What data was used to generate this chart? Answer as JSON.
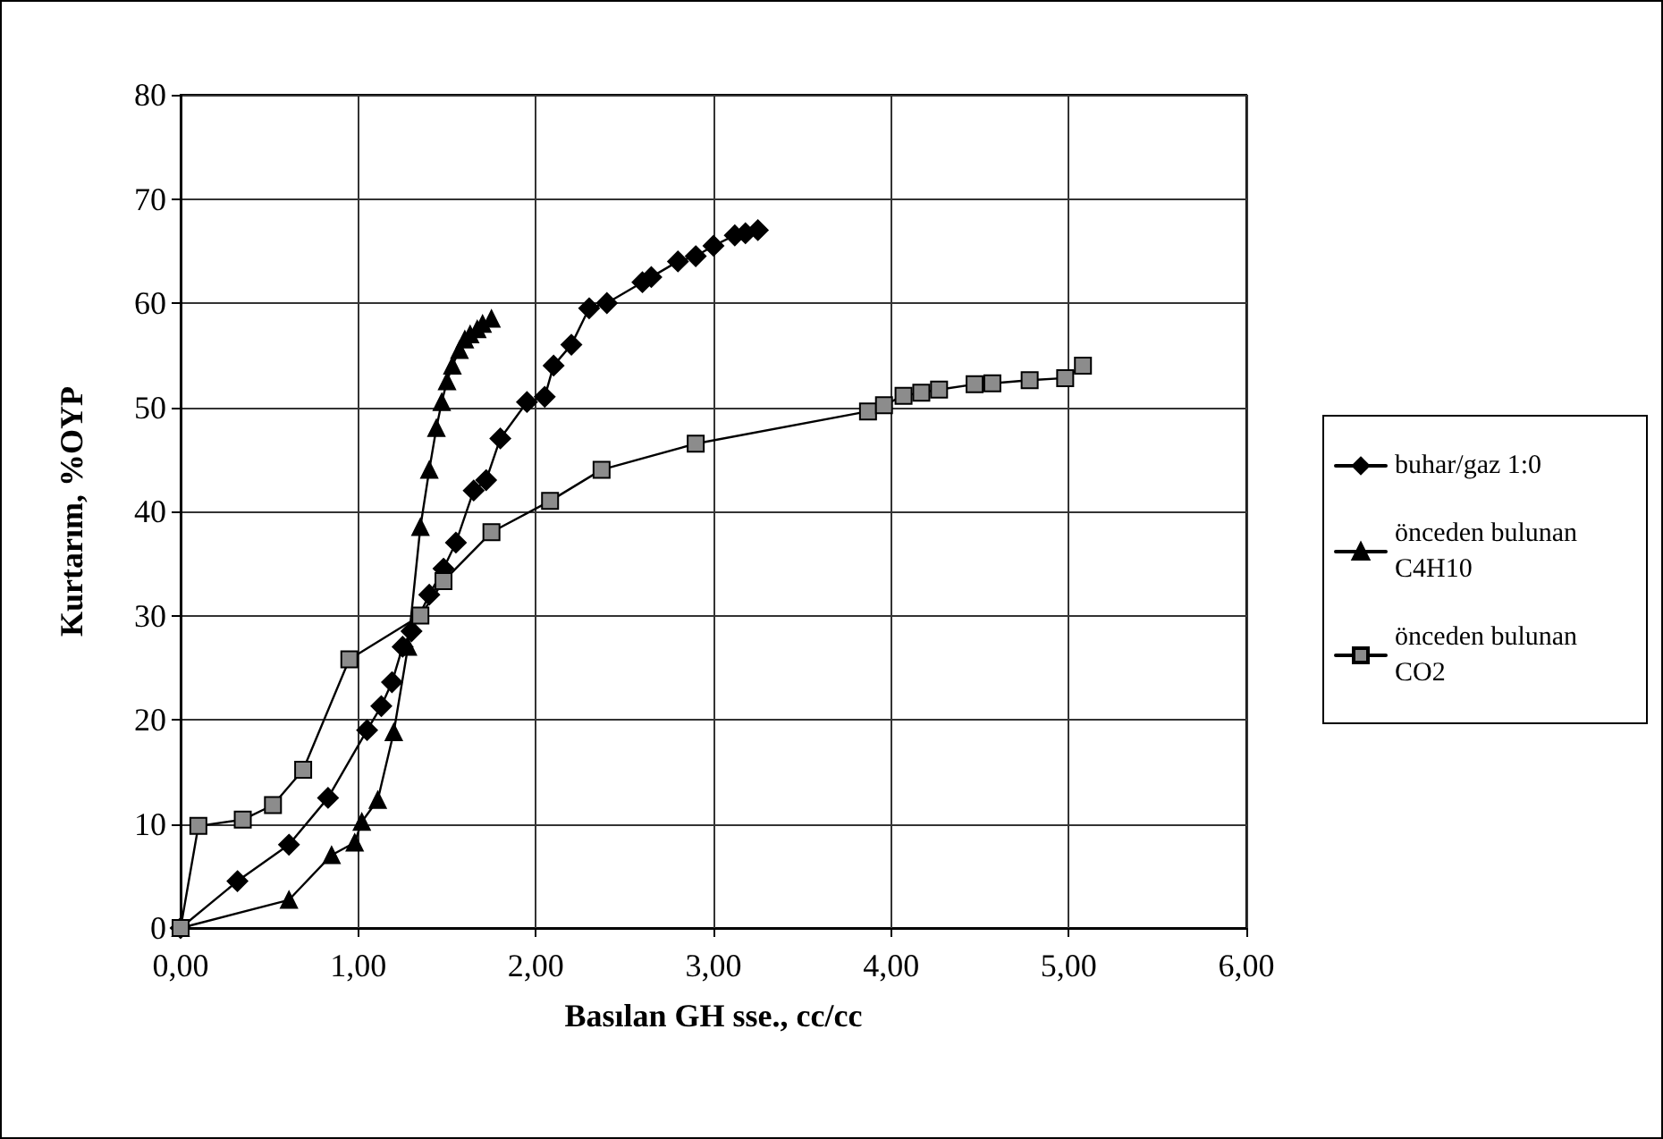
{
  "chart_data": {
    "type": "line",
    "xlabel": "Basılan GH sse., cc/cc",
    "ylabel": "Kurtarım, %OYP",
    "xlim": [
      0,
      6
    ],
    "xticks": [
      {
        "value": 0,
        "label": "0,00"
      },
      {
        "value": 1,
        "label": "1,00"
      },
      {
        "value": 2,
        "label": "2,00"
      },
      {
        "value": 3,
        "label": "3,00"
      },
      {
        "value": 4,
        "label": "4,00"
      },
      {
        "value": 5,
        "label": "5,00"
      },
      {
        "value": 6,
        "label": "6,00"
      }
    ],
    "ylim": [
      0,
      80
    ],
    "yticks": [
      0,
      10,
      20,
      30,
      40,
      50,
      60,
      70,
      80
    ],
    "grid": true,
    "legend": "right",
    "line_style": "solid",
    "series": [
      {
        "name": "buhar/gaz 1:0",
        "color": "#000000",
        "marker": "diamond",
        "x": [
          0,
          0.32,
          0.61,
          0.83,
          1.05,
          1.13,
          1.19,
          1.25,
          1.3,
          1.4,
          1.48,
          1.55,
          1.65,
          1.72,
          1.8,
          1.95,
          2.05,
          2.1,
          2.2,
          2.3,
          2.4,
          2.6,
          2.65,
          2.8,
          2.9,
          3.0,
          3.12,
          3.18,
          3.25
        ],
        "values": [
          0,
          4.5,
          8,
          12.5,
          19,
          21.3,
          23.6,
          27,
          28.5,
          32,
          34.5,
          37,
          42,
          43,
          47,
          50.5,
          51,
          54,
          56,
          59.5,
          60,
          62,
          62.5,
          64,
          64.5,
          65.5,
          66.5,
          66.7,
          67
        ]
      },
      {
        "name": "önceden bulunan C4H10",
        "color": "#000000",
        "marker": "triangle",
        "x": [
          0,
          0.61,
          0.85,
          0.98,
          1.02,
          1.11,
          1.2,
          1.28,
          1.35,
          1.4,
          1.44,
          1.47,
          1.5,
          1.53,
          1.57,
          1.6,
          1.63,
          1.67,
          1.7,
          1.75
        ],
        "values": [
          0,
          2.7,
          7,
          8.2,
          10.2,
          12.3,
          18.8,
          27,
          38.5,
          44,
          48,
          50.5,
          52.5,
          54,
          55.5,
          56.5,
          57,
          57.5,
          58,
          58.5
        ]
      },
      {
        "name": "önceden bulunan CO2",
        "color": "#8c8c8c",
        "marker": "square",
        "x": [
          0,
          0.1,
          0.35,
          0.52,
          0.69,
          0.95,
          1.35,
          1.48,
          1.75,
          2.08,
          2.37,
          2.9,
          3.87,
          3.96,
          4.07,
          4.17,
          4.27,
          4.47,
          4.57,
          4.78,
          4.98,
          5.08
        ],
        "values": [
          0,
          9.8,
          10.4,
          11.8,
          15.2,
          25.8,
          30,
          33.3,
          38,
          41,
          44,
          46.5,
          49.6,
          50.2,
          51.1,
          51.4,
          51.7,
          52.2,
          52.3,
          52.6,
          52.8,
          54
        ]
      }
    ]
  }
}
